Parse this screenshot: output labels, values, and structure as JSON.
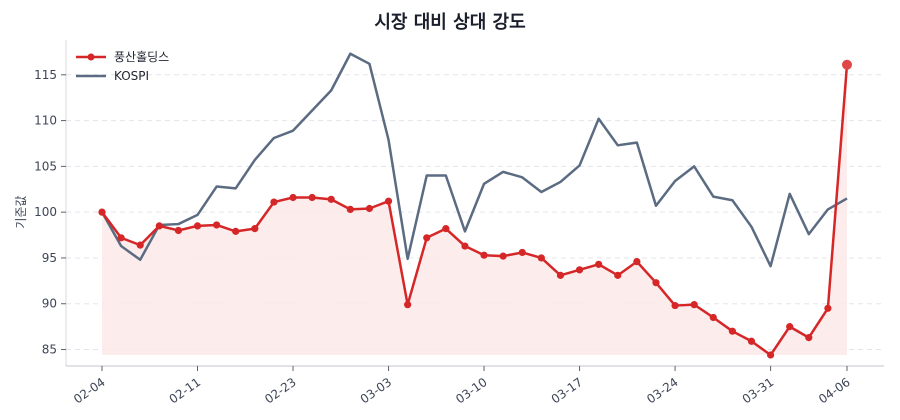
{
  "chart_data": {
    "type": "line",
    "title": "시장 대비 상대 강도",
    "xlabel": "",
    "ylabel": "기준값",
    "ylim": [
      83.2,
      118.8
    ],
    "yticks": [
      85,
      90,
      95,
      100,
      105,
      110,
      115
    ],
    "xtick_labels": [
      "02-04",
      "02-11",
      "02-23",
      "03-03",
      "03-10",
      "03-17",
      "03-24",
      "03-31",
      "04-06"
    ],
    "xtick_indices": [
      0,
      5,
      10,
      15,
      20,
      25,
      30,
      35,
      39
    ],
    "grid": {
      "y": true,
      "x": false,
      "style": "dashed"
    },
    "legend_position": "upper left",
    "series": [
      {
        "name": "풍산홀딩스",
        "color": "#d62728",
        "marker": "circle",
        "fill_below": true,
        "fill_color": "#fbe9e9",
        "values": [
          100.0,
          97.2,
          96.4,
          98.5,
          98.0,
          98.5,
          98.6,
          97.9,
          98.2,
          101.1,
          101.6,
          101.6,
          101.4,
          100.3,
          100.4,
          101.2,
          89.9,
          97.2,
          98.2,
          96.3,
          95.3,
          95.2,
          95.6,
          95.0,
          93.1,
          93.7,
          94.3,
          93.1,
          94.6,
          92.3,
          89.8,
          89.9,
          88.5,
          87.0,
          85.9,
          84.4,
          87.5,
          86.3,
          89.5,
          116.1
        ]
      },
      {
        "name": "KOSPI",
        "color": "#5b6b82",
        "marker": "none",
        "fill_below": false,
        "values": [
          100.0,
          96.3,
          94.8,
          98.6,
          98.7,
          99.7,
          102.8,
          102.6,
          105.7,
          108.1,
          108.9,
          111.1,
          113.3,
          117.3,
          116.2,
          107.9,
          94.9,
          104.0,
          104.0,
          97.9,
          103.1,
          104.4,
          103.8,
          102.2,
          103.3,
          105.1,
          110.2,
          107.3,
          107.6,
          100.7,
          103.4,
          105.0,
          101.7,
          101.3,
          98.4,
          94.1,
          102.0,
          97.6,
          100.3,
          101.5
        ]
      }
    ]
  },
  "legend": {
    "items": [
      {
        "label": "풍산홀딩스",
        "color": "#d62728"
      },
      {
        "label": "KOSPI",
        "color": "#5b6b82"
      }
    ]
  }
}
